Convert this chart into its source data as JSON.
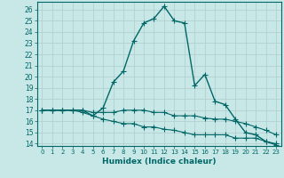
{
  "xlabel": "Humidex (Indice chaleur)",
  "background_color": "#c8e8e8",
  "grid_color": "#b0cccc",
  "line_color": "#006666",
  "xlim": [
    -0.5,
    23.5
  ],
  "ylim": [
    13.8,
    26.7
  ],
  "xticks": [
    0,
    1,
    2,
    3,
    4,
    5,
    6,
    7,
    8,
    9,
    10,
    11,
    12,
    13,
    14,
    15,
    16,
    17,
    18,
    19,
    20,
    21,
    22,
    23
  ],
  "yticks": [
    14,
    15,
    16,
    17,
    18,
    19,
    20,
    21,
    22,
    23,
    24,
    25,
    26
  ],
  "series": [
    {
      "x": [
        0,
        1,
        2,
        3,
        4,
        5,
        6,
        7,
        8,
        9,
        10,
        11,
        12,
        13,
        14,
        15,
        16,
        17,
        18,
        19,
        20,
        21,
        22,
        23
      ],
      "y": [
        17.0,
        17.0,
        17.0,
        17.0,
        17.0,
        16.5,
        17.2,
        19.5,
        20.5,
        23.2,
        24.8,
        25.2,
        26.3,
        25.0,
        24.8,
        19.2,
        20.2,
        17.8,
        17.5,
        16.2,
        15.0,
        14.8,
        14.2,
        13.9
      ]
    },
    {
      "x": [
        0,
        1,
        2,
        3,
        4,
        5,
        6,
        7,
        8,
        9,
        10,
        11,
        12,
        13,
        14,
        15,
        16,
        17,
        18,
        19,
        20,
        21,
        22,
        23
      ],
      "y": [
        17.0,
        17.0,
        17.0,
        17.0,
        17.0,
        16.8,
        16.8,
        16.8,
        17.0,
        17.0,
        17.0,
        16.8,
        16.8,
        16.5,
        16.5,
        16.5,
        16.3,
        16.2,
        16.2,
        16.0,
        15.8,
        15.5,
        15.2,
        14.8
      ]
    },
    {
      "x": [
        0,
        1,
        2,
        3,
        4,
        5,
        6,
        7,
        8,
        9,
        10,
        11,
        12,
        13,
        14,
        15,
        16,
        17,
        18,
        19,
        20,
        21,
        22,
        23
      ],
      "y": [
        17.0,
        17.0,
        17.0,
        17.0,
        16.8,
        16.5,
        16.2,
        16.0,
        15.8,
        15.8,
        15.5,
        15.5,
        15.3,
        15.2,
        15.0,
        14.8,
        14.8,
        14.8,
        14.8,
        14.5,
        14.5,
        14.5,
        14.2,
        14.0
      ]
    }
  ]
}
